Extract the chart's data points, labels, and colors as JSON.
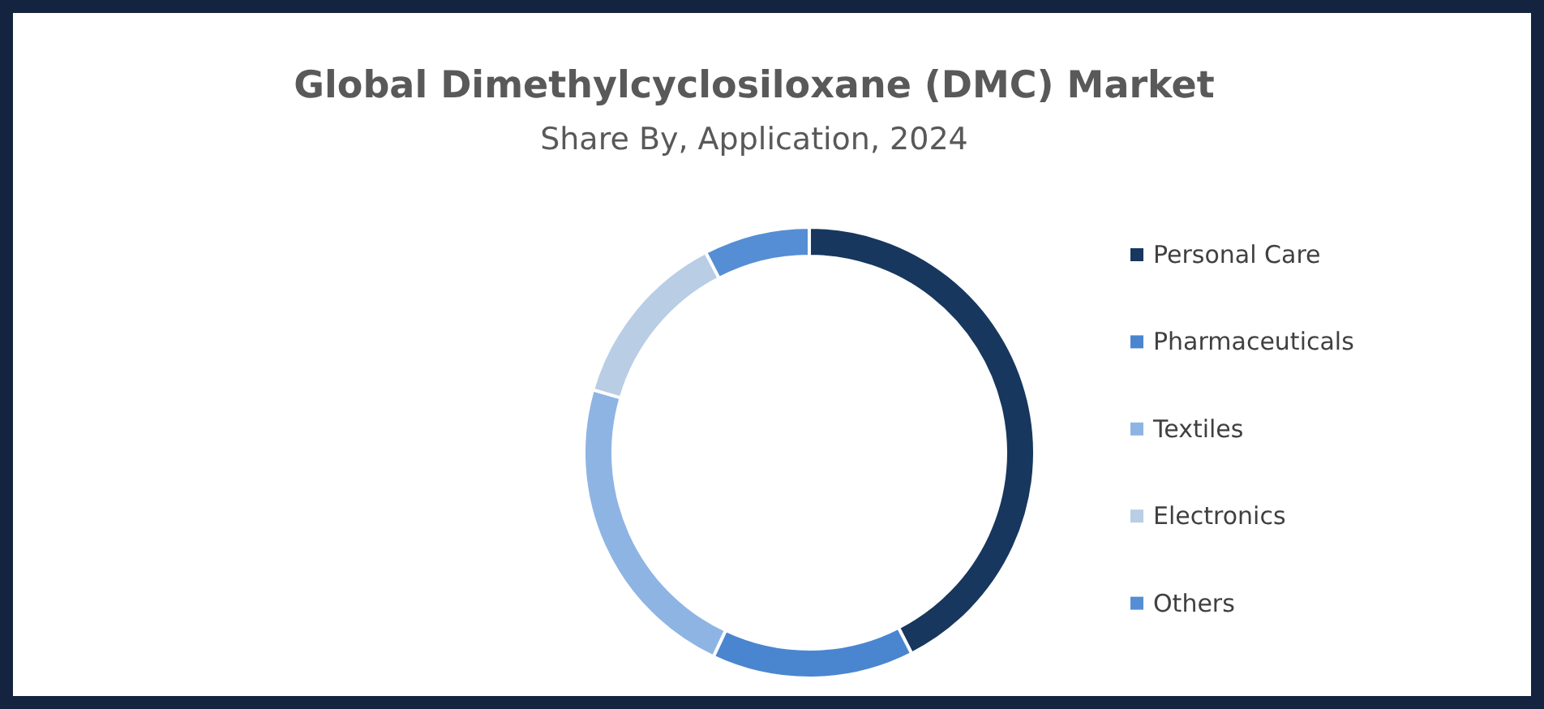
{
  "chart_data": {
    "type": "donut",
    "title": "Global Dimethylcyclosiloxane (DMC) Market",
    "subtitle": "Share By, Application, 2024",
    "categories": [
      "Personal Care",
      "Pharmaceuticals",
      "Textiles",
      "Electronics",
      "Others"
    ],
    "values": [
      42.5,
      14.5,
      22.5,
      12.9,
      7.6
    ],
    "colors": [
      "#17375e",
      "#4a86d0",
      "#8eb4e3",
      "#b9cde5",
      "#558ed5"
    ],
    "legend": "right"
  }
}
